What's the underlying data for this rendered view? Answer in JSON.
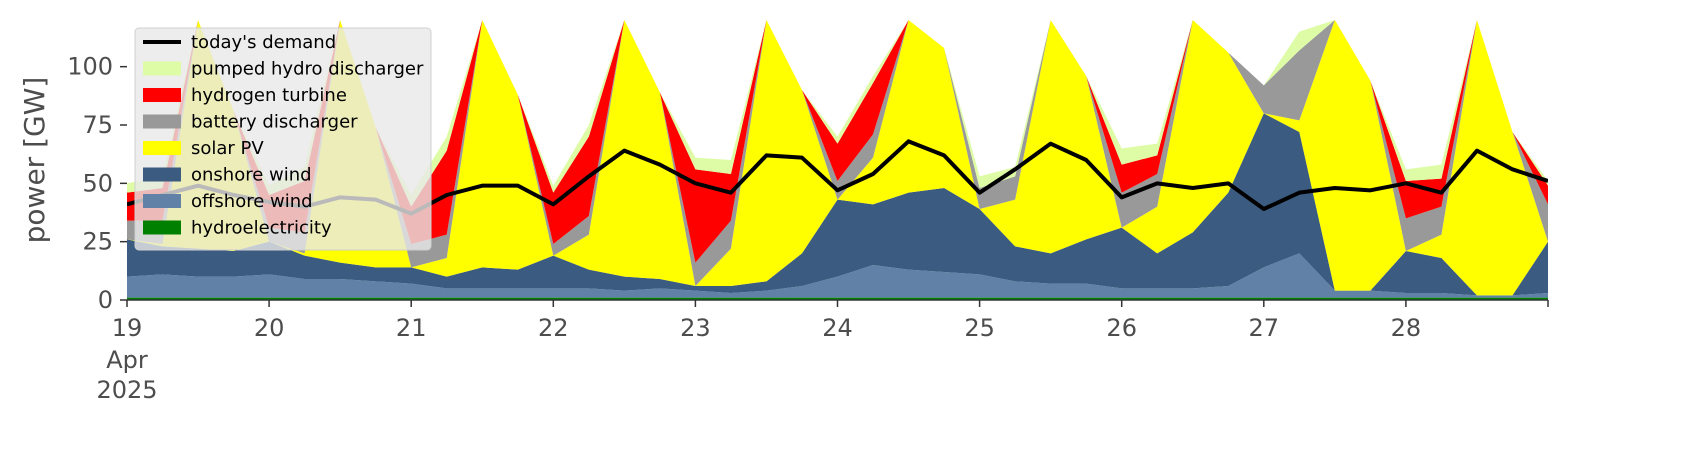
{
  "chart_data": {
    "type": "area",
    "title": "",
    "xlabel": "",
    "ylabel": "power [GW]",
    "ylim": [
      0,
      120
    ],
    "xlim_days": [
      19,
      29
    ],
    "yticks": [
      0,
      25,
      50,
      75,
      100
    ],
    "xticks": [
      {
        "day": 19,
        "label": "19",
        "sub1": "Apr",
        "sub2": "2025"
      },
      {
        "day": 20,
        "label": "20"
      },
      {
        "day": 21,
        "label": "21"
      },
      {
        "day": 22,
        "label": "22"
      },
      {
        "day": 23,
        "label": "23"
      },
      {
        "day": 24,
        "label": "24"
      },
      {
        "day": 25,
        "label": "25"
      },
      {
        "day": 26,
        "label": "26"
      },
      {
        "day": 27,
        "label": "27"
      },
      {
        "day": 28,
        "label": "28"
      }
    ],
    "grid": false,
    "legend_position": "top-left",
    "x": [
      19.0,
      19.25,
      19.5,
      19.75,
      20.0,
      20.25,
      20.5,
      20.75,
      21.0,
      21.25,
      21.5,
      21.75,
      22.0,
      22.25,
      22.5,
      22.75,
      23.0,
      23.25,
      23.5,
      23.75,
      24.0,
      24.25,
      24.5,
      24.75,
      25.0,
      25.25,
      25.5,
      25.75,
      26.0,
      26.25,
      26.5,
      26.75,
      27.0,
      27.25,
      27.5,
      27.75,
      28.0,
      28.25,
      28.5,
      28.75,
      29.0
    ],
    "series": [
      {
        "name": "hydroelectricity",
        "color": "#008000",
        "values": [
          1,
          1,
          1,
          1,
          1,
          1,
          1,
          1,
          1,
          1,
          1,
          1,
          1,
          1,
          1,
          1,
          1,
          1,
          1,
          1,
          1,
          1,
          1,
          1,
          1,
          1,
          1,
          1,
          1,
          1,
          1,
          1,
          1,
          1,
          1,
          1,
          1,
          1,
          1,
          1,
          1
        ]
      },
      {
        "name": "offshore wind",
        "color": "#6182a6",
        "values": [
          9,
          10,
          9,
          9,
          10,
          8,
          8,
          7,
          6,
          4,
          4,
          4,
          4,
          4,
          3,
          4,
          3,
          2,
          3,
          5,
          9,
          14,
          12,
          11,
          10,
          7,
          6,
          6,
          4,
          4,
          4,
          5,
          13,
          19,
          3,
          3,
          2,
          2,
          1,
          1,
          2
        ]
      },
      {
        "name": "onshore wind",
        "color": "#3b5c80",
        "values": [
          16,
          12,
          12,
          11,
          14,
          10,
          7,
          6,
          7,
          5,
          9,
          8,
          14,
          8,
          6,
          4,
          2,
          3,
          4,
          14,
          33,
          26,
          33,
          36,
          28,
          15,
          13,
          19,
          26,
          15,
          24,
          40,
          66,
          52,
          0,
          0,
          18,
          15,
          0,
          0,
          22
        ]
      },
      {
        "name": "solar PV",
        "color": "#ffff00",
        "values": [
          0,
          1,
          120,
          60,
          0,
          1,
          120,
          60,
          0,
          8,
          120,
          75,
          0,
          15,
          120,
          80,
          0,
          16,
          120,
          70,
          0,
          20,
          120,
          60,
          0,
          20,
          120,
          70,
          0,
          20,
          120,
          60,
          0,
          5,
          120,
          90,
          0,
          10,
          120,
          70,
          0
        ]
      },
      {
        "name": "battery discharger",
        "color": "#999999",
        "values": [
          8,
          10,
          0,
          0,
          6,
          9,
          0,
          0,
          10,
          10,
          0,
          0,
          5,
          8,
          0,
          0,
          10,
          12,
          0,
          0,
          8,
          10,
          0,
          0,
          9,
          10,
          0,
          0,
          15,
          14,
          0,
          0,
          12,
          30,
          0,
          0,
          14,
          12,
          0,
          0,
          16
        ]
      },
      {
        "name": "hydrogen turbine",
        "color": "#ff0000",
        "values": [
          12,
          14,
          0,
          0,
          14,
          22,
          0,
          0,
          16,
          36,
          0,
          0,
          22,
          34,
          0,
          0,
          40,
          20,
          0,
          0,
          16,
          22,
          0,
          0,
          0,
          0,
          0,
          0,
          12,
          8,
          0,
          0,
          0,
          0,
          0,
          0,
          16,
          12,
          0,
          0,
          8
        ]
      },
      {
        "name": "pumped hydro discharger",
        "color": "#ddfca5",
        "values": [
          4,
          5,
          0,
          0,
          4,
          6,
          0,
          0,
          5,
          6,
          0,
          0,
          3,
          5,
          0,
          0,
          5,
          6,
          0,
          0,
          3,
          3,
          0,
          0,
          5,
          4,
          0,
          0,
          7,
          5,
          0,
          0,
          0,
          8,
          0,
          0,
          5,
          6,
          0,
          0,
          2
        ]
      }
    ],
    "demand": {
      "name": "today's demand",
      "color": "#000000",
      "values": [
        41,
        45,
        49,
        45,
        42,
        40,
        44,
        43,
        37,
        45,
        49,
        49,
        41,
        53,
        64,
        58,
        50,
        46,
        62,
        61,
        47,
        54,
        68,
        62,
        46,
        56,
        67,
        60,
        44,
        50,
        48,
        50,
        39,
        46,
        48,
        47,
        50,
        46,
        64,
        56,
        51
      ]
    }
  }
}
